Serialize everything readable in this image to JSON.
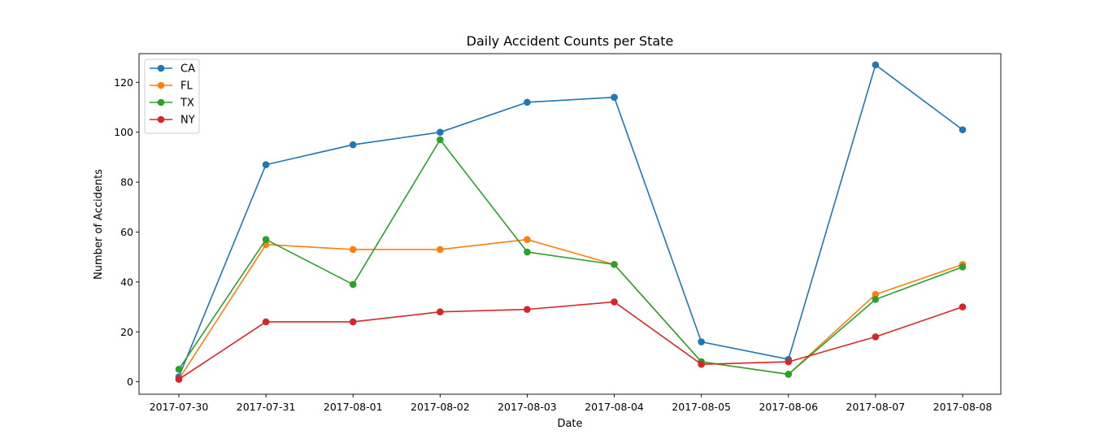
{
  "chart_data": {
    "type": "line",
    "title": "Daily Accident Counts per State",
    "xlabel": "Date",
    "ylabel": "Number of Accidents",
    "categories": [
      "2017-07-30",
      "2017-07-31",
      "2017-08-01",
      "2017-08-02",
      "2017-08-03",
      "2017-08-04",
      "2017-08-05",
      "2017-08-06",
      "2017-08-07",
      "2017-08-08"
    ],
    "ylim": [
      -5,
      131.5
    ],
    "yticks": [
      0,
      20,
      40,
      60,
      80,
      100,
      120
    ],
    "grid": false,
    "legend_position": "top-left",
    "markers": true,
    "series": [
      {
        "name": "CA",
        "color": "#1f77b4",
        "values": [
          2,
          87,
          95,
          100,
          112,
          114,
          16,
          9,
          127,
          101
        ]
      },
      {
        "name": "FL",
        "color": "#ff7f0e",
        "values": [
          1,
          55,
          53,
          53,
          57,
          47,
          8,
          3,
          35,
          47
        ]
      },
      {
        "name": "TX",
        "color": "#2ca02c",
        "values": [
          5,
          57,
          39,
          97,
          52,
          47,
          8,
          3,
          33,
          46
        ]
      },
      {
        "name": "NY",
        "color": "#d62728",
        "values": [
          1,
          24,
          24,
          28,
          29,
          32,
          7,
          8,
          18,
          30
        ]
      }
    ]
  }
}
